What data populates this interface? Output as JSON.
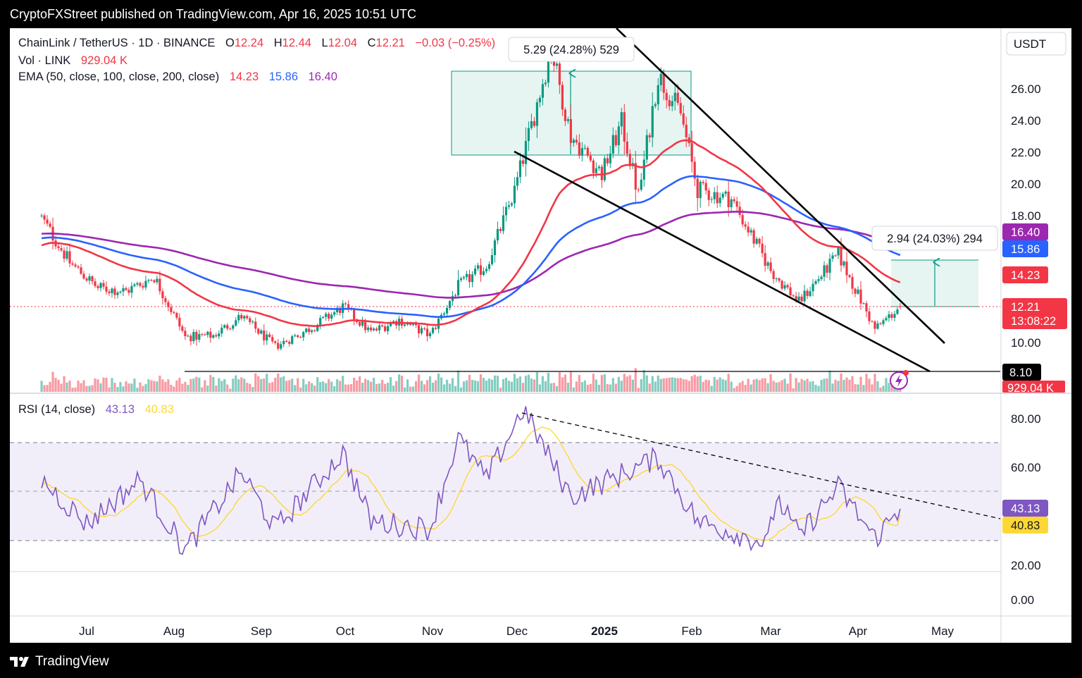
{
  "header": {
    "publisher_line": "CryptoFXStreet published on TradingView.com, Apr 16, 2025 10:51 UTC"
  },
  "footer": {
    "brand": "TradingView"
  },
  "legend": {
    "symbol": "ChainLink / TetherUS · 1D · BINANCE",
    "o_label": "O",
    "o_value": "12.24",
    "h_label": "H",
    "h_value": "12.44",
    "l_label": "L",
    "l_value": "12.04",
    "c_label": "C",
    "c_value": "12.21",
    "change": "−0.03 (−0.25%)",
    "vol_label": "Vol · LINK",
    "vol_value": "929.04 K",
    "ema_label": "EMA (50, close, 100, close, 200, close)",
    "ema50": "14.23",
    "ema100": "15.86",
    "ema200": "16.40",
    "rsi_label": "RSI (14, close)",
    "rsi_value": "43.13",
    "rsi_ma": "40.83"
  },
  "price_scale": {
    "currency": "USDT",
    "ticks": [
      "26.00",
      "24.00",
      "22.00",
      "20.00",
      "18.00",
      "10.00"
    ],
    "badges": {
      "ema200": "16.40",
      "ema100": "15.86",
      "ema50": "14.23",
      "last_price": "12.21",
      "countdown": "13:08:22",
      "support": "8.10",
      "volume": "929.04 K"
    }
  },
  "rsi_scale": {
    "ticks": [
      "80.00",
      "60.00",
      "20.00",
      "0.00"
    ],
    "badge_rsi": "43.13",
    "badge_ma": "40.83"
  },
  "time_axis": {
    "labels": [
      "Jul",
      "Aug",
      "Sep",
      "Oct",
      "Nov",
      "Dec",
      "2025",
      "Feb",
      "Mar",
      "Apr",
      "May"
    ]
  },
  "annotations": {
    "range_top": "5.29 (24.28%) 529",
    "range_bottom": "2.94 (24.03%) 294"
  },
  "colors": {
    "up": "#089981",
    "down": "#f23645",
    "ema50": "#f23645",
    "ema100": "#2962ff",
    "ema200": "#9c27b0",
    "rsi": "#7e57c2",
    "rsi_ma": "#fdd835"
  },
  "chart_data": [
    {
      "type": "candlestick",
      "title": "ChainLink / TetherUS · 1D · BINANCE",
      "y_axis": "USDT",
      "x_range": [
        "2024-06",
        "2025-05"
      ],
      "ylim": [
        7,
        29
      ],
      "last": {
        "open": 12.24,
        "high": 12.44,
        "low": 12.04,
        "close": 12.21,
        "change": -0.03,
        "change_pct": -0.25
      },
      "anchors": [
        {
          "date": "2024-06-15",
          "close": 17.8
        },
        {
          "date": "2024-06-25",
          "close": 15.0
        },
        {
          "date": "2024-07-05",
          "close": 13.4
        },
        {
          "date": "2024-07-15",
          "close": 13.2
        },
        {
          "date": "2024-07-25",
          "close": 14.1
        },
        {
          "date": "2024-08-05",
          "close": 10.3
        },
        {
          "date": "2024-08-15",
          "close": 10.4
        },
        {
          "date": "2024-08-25",
          "close": 11.6
        },
        {
          "date": "2024-09-06",
          "close": 9.7
        },
        {
          "date": "2024-09-20",
          "close": 11.0
        },
        {
          "date": "2024-09-30",
          "close": 12.2
        },
        {
          "date": "2024-10-10",
          "close": 10.6
        },
        {
          "date": "2024-10-20",
          "close": 11.4
        },
        {
          "date": "2024-10-31",
          "close": 10.4
        },
        {
          "date": "2024-11-10",
          "close": 13.5
        },
        {
          "date": "2024-11-20",
          "close": 14.8
        },
        {
          "date": "2024-11-30",
          "close": 19.5
        },
        {
          "date": "2024-12-13",
          "close": 28.5
        },
        {
          "date": "2024-12-20",
          "close": 23.0
        },
        {
          "date": "2024-12-31",
          "close": 20.6
        },
        {
          "date": "2025-01-07",
          "close": 23.8
        },
        {
          "date": "2025-01-13",
          "close": 19.2
        },
        {
          "date": "2025-01-20",
          "close": 26.8
        },
        {
          "date": "2025-01-28",
          "close": 24.4
        },
        {
          "date": "2025-02-03",
          "close": 19.6
        },
        {
          "date": "2025-02-15",
          "close": 19.0
        },
        {
          "date": "2025-03-01",
          "close": 14.5
        },
        {
          "date": "2025-03-11",
          "close": 12.5
        },
        {
          "date": "2025-03-25",
          "close": 15.5
        },
        {
          "date": "2025-04-07",
          "close": 10.8
        },
        {
          "date": "2025-04-16",
          "close": 12.21
        }
      ],
      "ema": {
        "ema50": 14.23,
        "ema100": 15.86,
        "ema200": 16.4
      },
      "volume_last": "929.04 K",
      "levels": {
        "horizontal_support": 8.1
      },
      "annotations": [
        {
          "text": "5.29 (24.28%) 529",
          "from": 21.8,
          "to": 27.1
        },
        {
          "text": "2.94 (24.03%) 294",
          "from": 12.21,
          "to": 15.15
        }
      ]
    },
    {
      "type": "line",
      "title": "RSI (14, close)",
      "series": [
        {
          "name": "RSI",
          "last": 43.13
        },
        {
          "name": "RSI MA",
          "last": 40.83
        }
      ],
      "bands": [
        30,
        50,
        70
      ],
      "ylim": [
        0,
        90
      ],
      "anchors": [
        {
          "date": "2024-06-15",
          "rsi": 55
        },
        {
          "date": "2024-07-01",
          "rsi": 37
        },
        {
          "date": "2024-07-20",
          "rsi": 55
        },
        {
          "date": "2024-08-05",
          "rsi": 26
        },
        {
          "date": "2024-08-25",
          "rsi": 58
        },
        {
          "date": "2024-09-06",
          "rsi": 35
        },
        {
          "date": "2024-09-30",
          "rsi": 66
        },
        {
          "date": "2024-10-10",
          "rsi": 38
        },
        {
          "date": "2024-10-31",
          "rsi": 35
        },
        {
          "date": "2024-11-10",
          "rsi": 72
        },
        {
          "date": "2024-11-20",
          "rsi": 55
        },
        {
          "date": "2024-12-03",
          "rsi": 84
        },
        {
          "date": "2024-12-20",
          "rsi": 48
        },
        {
          "date": "2025-01-20",
          "rsi": 64
        },
        {
          "date": "2025-02-03",
          "rsi": 38
        },
        {
          "date": "2025-02-28",
          "rsi": 29
        },
        {
          "date": "2025-03-03",
          "rsi": 48
        },
        {
          "date": "2025-03-11",
          "rsi": 32
        },
        {
          "date": "2025-03-25",
          "rsi": 52
        },
        {
          "date": "2025-04-07",
          "rsi": 31
        },
        {
          "date": "2025-04-16",
          "rsi": 43.13
        }
      ]
    }
  ]
}
